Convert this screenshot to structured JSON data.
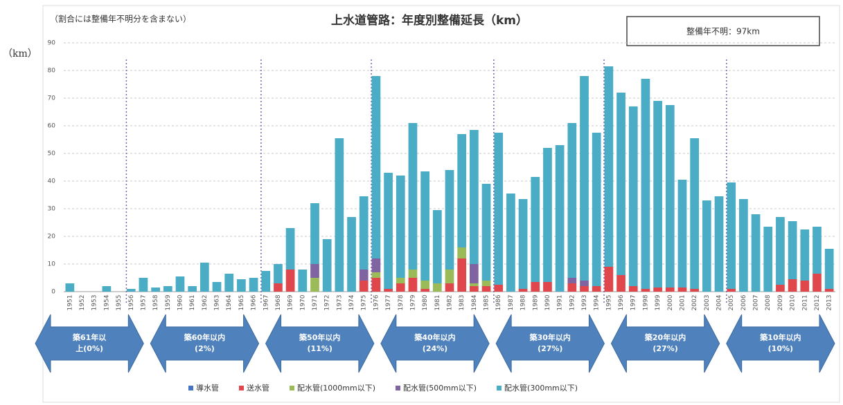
{
  "chart_data": {
    "type": "bar",
    "stacked": true,
    "title": "上水道管路：年度別整備延長（km）",
    "subtitle": "（割合には整備年不明分を含まない）",
    "note": "整備年不明：97km",
    "y_label": "（km）",
    "categories": [
      "1951",
      "1952",
      "1953",
      "1954",
      "1955",
      "1956",
      "1957",
      "1958",
      "1959",
      "1960",
      "1961",
      "1962",
      "1963",
      "1964",
      "1965",
      "1966",
      "1967",
      "1968",
      "1969",
      "1970",
      "1971",
      "1972",
      "1973",
      "1974",
      "1975",
      "1976",
      "1977",
      "1978",
      "1979",
      "1980",
      "1981",
      "1982",
      "1983",
      "1984",
      "1985",
      "1986",
      "1987",
      "1988",
      "1989",
      "1990",
      "1991",
      "1992",
      "1993",
      "1994",
      "1995",
      "1996",
      "1997",
      "1998",
      "1999",
      "2000",
      "2001",
      "2002",
      "2003",
      "2004",
      "2005",
      "2006",
      "2007",
      "2008",
      "2009",
      "2010",
      "2011",
      "2012",
      "2013"
    ],
    "series": [
      {
        "name": "導水管",
        "color": "#4472c4",
        "values": [
          0,
          0,
          0,
          0,
          0,
          0,
          0,
          0,
          0,
          0,
          0,
          0,
          0,
          0,
          0,
          0,
          0,
          0,
          0,
          0,
          0,
          0,
          0,
          0,
          0,
          0,
          0,
          0,
          0,
          0,
          0,
          0,
          0,
          0,
          0,
          0,
          0,
          0,
          0,
          0,
          0,
          0,
          0,
          0,
          0,
          0,
          0,
          0,
          0,
          0,
          0,
          0,
          0,
          0,
          0,
          0,
          0,
          0,
          0,
          0,
          0,
          0,
          0
        ]
      },
      {
        "name": "送水管",
        "color": "#e0474c",
        "values": [
          0,
          0,
          0,
          0,
          0,
          0,
          0,
          0,
          0,
          0,
          0,
          0,
          0,
          0,
          0,
          0,
          0,
          3,
          8,
          0,
          0,
          0,
          0,
          0,
          4,
          5,
          1,
          3,
          5,
          1,
          0,
          3,
          12,
          2,
          2,
          2.5,
          0,
          1,
          3.5,
          3.5,
          0,
          3,
          2,
          2,
          9,
          6,
          2,
          1,
          1.5,
          1.5,
          1.5,
          1,
          0,
          0,
          1,
          0,
          0,
          0,
          2.5,
          4.5,
          4,
          6.5,
          1
        ]
      },
      {
        "name": "配水管(1000mm以下)",
        "color": "#9bbb59",
        "values": [
          0,
          0,
          0,
          0,
          0,
          0,
          0,
          0,
          0,
          0,
          0,
          0,
          0,
          0,
          0,
          0,
          0,
          0,
          0,
          0,
          5,
          0,
          0,
          0,
          0,
          2,
          0,
          2,
          3,
          3,
          3,
          5,
          4,
          1,
          2,
          0,
          0,
          0,
          0,
          0,
          0,
          0,
          0,
          0,
          0,
          0,
          0,
          0,
          0,
          0,
          0,
          0,
          0,
          0,
          0,
          0,
          0,
          0,
          0,
          0,
          0,
          0,
          0
        ]
      },
      {
        "name": "配水管(500mm以下)",
        "color": "#8064a2",
        "values": [
          0,
          0,
          0,
          0,
          0,
          0,
          0,
          0,
          0,
          0,
          0,
          0,
          0,
          0,
          0,
          0,
          0,
          0,
          0,
          0,
          5,
          0,
          0,
          0,
          4,
          5,
          0,
          0,
          0,
          0,
          0,
          0,
          0,
          7,
          0,
          0,
          0,
          0,
          0,
          0,
          0,
          2,
          2,
          0,
          0,
          0,
          0,
          0,
          0,
          0,
          0,
          0,
          0,
          0,
          0,
          0,
          0,
          0,
          0,
          0,
          0,
          0,
          0
        ]
      },
      {
        "name": "配水管(300mm以下)",
        "color": "#4bacc6",
        "values": [
          3,
          0,
          0,
          2,
          0,
          1,
          5,
          1.5,
          2,
          5.5,
          2,
          10.5,
          3.5,
          6.5,
          4.5,
          5,
          7.5,
          7,
          15,
          8,
          22,
          19,
          55.5,
          27,
          26.5,
          66,
          42,
          37,
          53,
          39.5,
          26.5,
          36,
          41,
          48.5,
          35,
          55,
          35.5,
          32.5,
          38,
          48.5,
          53,
          56,
          74,
          55.5,
          72.5,
          66,
          65,
          76,
          67.5,
          66,
          39,
          54.5,
          33,
          34.5,
          38.5,
          33.5,
          28,
          23.5,
          24.5,
          21,
          18.5,
          17,
          14.5
        ]
      }
    ],
    "periods": [
      [
        "築61年以",
        "上(0%)"
      ],
      [
        "築60年以内",
        "(2%)"
      ],
      [
        "築50年以内",
        "(11%)"
      ],
      [
        "築40年以内",
        "(24%)"
      ],
      [
        "築30年以内",
        "(27%)"
      ],
      [
        "築20年以内",
        "(27%)"
      ],
      [
        "築10年以内",
        "(10%)"
      ]
    ],
    "ylim": [
      0,
      90
    ],
    "yticks": [
      0,
      10,
      20,
      30,
      40,
      50,
      60,
      70,
      80,
      90
    ],
    "grid": true,
    "legend": "bottom"
  }
}
